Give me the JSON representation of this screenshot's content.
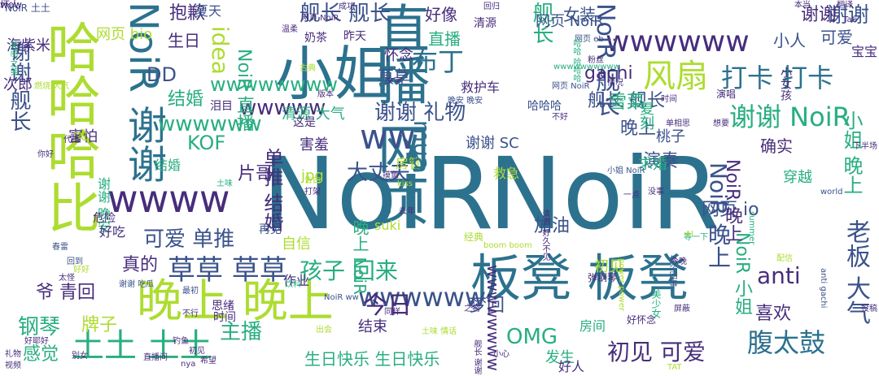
{
  "palette": {
    "background": "#ffffff",
    "purple": "#472d7b",
    "teal": "#2c728e",
    "green": "#28ae80",
    "lime": "#addc30",
    "blue": "#3b528b"
  },
  "words": [
    {
      "text": "NoiR",
      "color": "#2c728e",
      "orient": "h"
    },
    {
      "text": "NoiR",
      "color": "#2c728e",
      "orient": "h"
    },
    {
      "text": "板凳 板凳",
      "color": "#2c728e",
      "orient": "h"
    },
    {
      "text": "直播 网页",
      "color": "#2c728e",
      "orient": "v"
    },
    {
      "text": "小姐",
      "color": "#2c728e",
      "orient": "h"
    },
    {
      "text": "晚上 晚上",
      "color": "#addc30",
      "orient": "h"
    },
    {
      "text": "哈哈哈比",
      "color": "#addc30",
      "orient": "v"
    },
    {
      "text": "wwww",
      "color": "#472d7b",
      "orient": "h"
    },
    {
      "text": "NoiR 谢谢",
      "color": "#2c728e",
      "orient": "v"
    },
    {
      "text": "wwwwww",
      "color": "#3b528b",
      "orient": "h"
    },
    {
      "text": "wwwwww",
      "color": "#472d7b",
      "orient": "h"
    },
    {
      "text": "土土 土土",
      "color": "#28ae80",
      "orient": "h"
    },
    {
      "text": "草草 草草",
      "color": "#3b528b",
      "orient": "h"
    },
    {
      "text": "舰长 舰长",
      "color": "#3b528b",
      "orient": "h"
    },
    {
      "text": "腹太鼓",
      "color": "#2c728e",
      "orient": "h"
    },
    {
      "text": "谢谢 NoiR",
      "color": "#28ae80",
      "orient": "h"
    },
    {
      "text": "风扇",
      "color": "#addc30",
      "orient": "h"
    },
    {
      "text": "打卡 打卡",
      "color": "#2c728e",
      "orient": "h"
    },
    {
      "text": "ww",
      "color": "#3b528b",
      "orient": "h"
    },
    {
      "text": "wwwww",
      "color": "#472d7b",
      "orient": "h"
    },
    {
      "text": "wwwwww",
      "color": "#28ae80",
      "orient": "h"
    },
    {
      "text": "初见 可爱",
      "color": "#472d7b",
      "orient": "h"
    },
    {
      "text": "主播",
      "color": "#28ae80",
      "orient": "h"
    },
    {
      "text": "今日",
      "color": "#472d7b",
      "orient": "h"
    },
    {
      "text": "布丁",
      "color": "#2c728e",
      "orient": "h"
    },
    {
      "text": "可爱 单推",
      "color": "#3b528b",
      "orient": "h"
    },
    {
      "text": "孩子 回来",
      "color": "#28ae80",
      "orient": "h"
    },
    {
      "text": "结婚",
      "color": "#28ae80",
      "orient": "h"
    },
    {
      "text": "anti",
      "color": "#472d7b",
      "orient": "h"
    },
    {
      "text": "OMG",
      "color": "#28ae80",
      "orient": "h"
    },
    {
      "text": "生日快乐 生日快乐",
      "color": "#28ae80",
      "orient": "h"
    },
    {
      "text": "老板 大气",
      "color": "#3b528b",
      "orient": "v"
    },
    {
      "text": "NoiR 舰长",
      "color": "#3b528b",
      "orient": "v"
    },
    {
      "text": "NoiR 晚上",
      "color": "#3b528b",
      "orient": "v"
    },
    {
      "text": "谢谢 舰长",
      "color": "#3b528b",
      "orient": "v"
    },
    {
      "text": "idea",
      "color": "#addc30",
      "orient": "v"
    },
    {
      "text": "谢谢",
      "color": "#3b528b",
      "orient": "h"
    },
    {
      "text": "谢谢 礼物",
      "color": "#3b528b",
      "orient": "h"
    },
    {
      "text": "大丈夫",
      "color": "#3b528b",
      "orient": "h"
    },
    {
      "text": "抱歉",
      "color": "#472d7b",
      "orient": "h"
    },
    {
      "text": "生日",
      "color": "#472d7b",
      "orient": "h"
    },
    {
      "text": "DD",
      "color": "#3b528b",
      "orient": "h"
    },
    {
      "text": "KOF",
      "color": "#28ae80",
      "orient": "h"
    },
    {
      "text": "片哥",
      "color": "#472d7b",
      "orient": "h"
    },
    {
      "text": "真的",
      "color": "#472d7b",
      "orient": "h"
    },
    {
      "text": "钢琴",
      "color": "#28ae80",
      "orient": "h"
    },
    {
      "text": "牌子",
      "color": "#addc30",
      "orient": "h"
    },
    {
      "text": "感觉",
      "color": "#28ae80",
      "orient": "h"
    },
    {
      "text": "爷 青回",
      "color": "#472d7b",
      "orient": "h"
    },
    {
      "text": "喜欢",
      "color": "#472d7b",
      "orient": "h"
    },
    {
      "text": "演奏",
      "color": "#3b528b",
      "orient": "h"
    },
    {
      "text": "晚上",
      "color": "#3b528b",
      "orient": "h"
    },
    {
      "text": "gachi",
      "color": "#472d7b",
      "orient": "h"
    },
    {
      "text": "直播",
      "color": "#28ae80",
      "orient": "h"
    },
    {
      "text": "好像",
      "color": "#472d7b",
      "orient": "h"
    },
    {
      "text": "女装",
      "color": "#3b528b",
      "orient": "h"
    },
    {
      "text": "小人",
      "color": "#3b528b",
      "orient": "h"
    },
    {
      "text": "可爱",
      "color": "#3b528b",
      "orient": "h"
    },
    {
      "text": "谢谢",
      "color": "#472d7b",
      "orient": "h"
    },
    {
      "text": "舰长",
      "color": "#28ae80",
      "orient": "v"
    },
    {
      "text": "舰长 舰长",
      "color": "#3b528b",
      "orient": "h"
    },
    {
      "text": "雪菜",
      "color": "#28ae80",
      "orient": "h"
    },
    {
      "text": "复刻",
      "color": "#28ae80",
      "orient": "v"
    },
    {
      "text": "桃子",
      "color": "#3b528b",
      "orient": "h"
    },
    {
      "text": "确实",
      "color": "#472d7b",
      "orient": "h"
    },
    {
      "text": "谢谢 SC",
      "color": "#3b528b",
      "orient": "h"
    },
    {
      "text": "网页 io",
      "color": "#3b528b",
      "orient": "h"
    },
    {
      "text": "加油",
      "color": "#3b528b",
      "orient": "h"
    },
    {
      "text": "初见",
      "color": "#addc30",
      "orient": "h"
    },
    {
      "text": "结束",
      "color": "#472d7b",
      "orient": "h"
    },
    {
      "text": "发生",
      "color": "#28ae80",
      "orient": "h"
    },
    {
      "text": "房间",
      "color": "#28ae80",
      "orient": "h"
    },
    {
      "text": "好人",
      "color": "#472d7b",
      "orient": "h"
    },
    {
      "text": "海紫米",
      "color": "#472d7b",
      "orient": "h"
    },
    {
      "text": "次郎",
      "color": "#472d7b",
      "orient": "h"
    },
    {
      "text": "夏天",
      "color": "#3b528b",
      "orient": "h"
    },
    {
      "text": "怀念",
      "color": "#472d7b",
      "orient": "h"
    },
    {
      "text": "草草",
      "color": "#3b528b",
      "orient": "h"
    },
    {
      "text": "救护车",
      "color": "#472d7b",
      "orient": "h"
    },
    {
      "text": "害羞",
      "color": "#472d7b",
      "orient": "h"
    },
    {
      "text": "房管",
      "color": "#addc30",
      "orient": "h"
    },
    {
      "text": "求婚",
      "color": "#28ae80",
      "orient": "h"
    },
    {
      "text": "穿越",
      "color": "#28ae80",
      "orient": "h"
    },
    {
      "text": "自信",
      "color": "#addc30",
      "orient": "h"
    },
    {
      "text": "梦回",
      "color": "#3b528b",
      "orient": "h"
    },
    {
      "text": "mua",
      "color": "#2c728e",
      "orient": "v"
    },
    {
      "text": "单推 结婚",
      "color": "#472d7b",
      "orient": "v"
    },
    {
      "text": "NoiR 直播",
      "color": "#28ae80",
      "orient": "v"
    },
    {
      "text": "小姐 晚上",
      "color": "#28ae80",
      "orient": "v"
    },
    {
      "text": "NoiR 小姐",
      "color": "#28ae80",
      "orient": "v"
    },
    {
      "text": "NoiR 晚上",
      "color": "#472d7b",
      "orient": "v"
    },
    {
      "text": "晚上 NoiR",
      "color": "#28ae80",
      "orient": "v"
    },
    {
      "text": "wwwwwwww",
      "color": "#472d7b",
      "orient": "v"
    },
    {
      "text": "wwwwwwww",
      "color": "#28ae80",
      "orient": "h"
    },
    {
      "text": "jpg",
      "color": "#addc30",
      "orient": "h"
    },
    {
      "text": "结婚",
      "color": "#28ae80",
      "orient": "h"
    },
    {
      "text": "害怕",
      "color": "#472d7b",
      "orient": "h"
    },
    {
      "text": "谢谢 晚安",
      "color": "#28ae80",
      "orient": "v"
    },
    {
      "text": "清源 大气",
      "color": "#28ae80",
      "orient": "h"
    },
    {
      "text": "SC",
      "color": "#addc30",
      "orient": "h"
    },
    {
      "text": "好吃",
      "color": "#472d7b",
      "orient": "h"
    },
    {
      "text": "危险",
      "color": "#472d7b",
      "orient": "h"
    },
    {
      "text": "泪目",
      "color": "#472d7b",
      "orient": "h"
    },
    {
      "text": "这是",
      "color": "#472d7b",
      "orient": "h"
    },
    {
      "text": "思绪",
      "color": "#472d7b",
      "orient": "h"
    },
    {
      "text": "时间",
      "color": "#472d7b",
      "orient": "h"
    },
    {
      "text": "作业",
      "color": "#472d7b",
      "orient": "h"
    },
    {
      "text": "再见",
      "color": "#3b528b",
      "orient": "h"
    },
    {
      "text": "suki",
      "color": "#addc30",
      "orient": "h"
    },
    {
      "text": "救急",
      "color": "#addc30",
      "orient": "h"
    },
    {
      "text": "清源",
      "color": "#472d7b",
      "orient": "h"
    },
    {
      "text": "宝宝",
      "color": "#472d7b",
      "orient": "h"
    },
    {
      "text": "小女孩",
      "color": "#472d7b",
      "orient": "v"
    },
    {
      "text": "哈哈哈",
      "color": "#3b528b",
      "orient": "h"
    },
    {
      "text": "网页 NoiR",
      "color": "#3b528b",
      "orient": "h"
    },
    {
      "text": "奶茶",
      "color": "#472d7b",
      "orient": "h"
    },
    {
      "text": "昨天",
      "color": "#472d7b",
      "orient": "h"
    },
    {
      "text": "网页 bio",
      "color": "#addc30",
      "orient": "h"
    },
    {
      "text": "美丽 之美",
      "color": "#28ae80",
      "orient": "v"
    },
    {
      "text": "燃烧 大气",
      "color": "#addc30",
      "orient": "h"
    },
    {
      "text": "你好",
      "color": "#472d7b",
      "orient": "h"
    },
    {
      "text": "代播",
      "color": "#472d7b",
      "orient": "h"
    },
    {
      "text": "土味",
      "color": "#28ae80",
      "orient": "h"
    },
    {
      "text": "好好",
      "color": "#addc30",
      "orient": "h"
    },
    {
      "text": "春雷",
      "color": "#3b528b",
      "orient": "h"
    },
    {
      "text": "回到",
      "color": "#3b528b",
      "orient": "h"
    },
    {
      "text": "太怪",
      "color": "#472d7b",
      "orient": "h"
    },
    {
      "text": "谢谢 吃瓜",
      "color": "#3b528b",
      "orient": "h"
    },
    {
      "text": "最初",
      "color": "#3b528b",
      "orient": "h"
    },
    {
      "text": "不行",
      "color": "#472d7b",
      "orient": "h"
    },
    {
      "text": "钓鱼",
      "color": "#472d7b",
      "orient": "h"
    },
    {
      "text": "别女",
      "color": "#472d7b",
      "orient": "h"
    },
    {
      "text": "初见",
      "color": "#472d7b",
      "orient": "h"
    },
    {
      "text": "希望",
      "color": "#472d7b",
      "orient": "h"
    },
    {
      "text": "直播间",
      "color": "#472d7b",
      "orient": "h"
    },
    {
      "text": "nya",
      "color": "#472d7b",
      "orient": "h"
    },
    {
      "text": "出会",
      "color": "#addc30",
      "orient": "h"
    },
    {
      "text": "土味 情话",
      "color": "#addc30",
      "orient": "h"
    },
    {
      "text": "NoiR ww",
      "color": "#3b528b",
      "orient": "h"
    },
    {
      "text": "饮料",
      "color": "#28ae80",
      "orient": "h"
    },
    {
      "text": "同样",
      "color": "#472d7b",
      "orient": "h"
    },
    {
      "text": "告白",
      "color": "#addc30",
      "orient": "h"
    },
    {
      "text": "打架",
      "color": "#472d7b",
      "orient": "h"
    },
    {
      "text": "摸鱼",
      "color": "#472d7b",
      "orient": "h"
    },
    {
      "text": "去年",
      "color": "#472d7b",
      "orient": "h"
    },
    {
      "text": "kiss",
      "color": "#addc30",
      "orient": "h"
    },
    {
      "text": "经典",
      "color": "#addc30",
      "orient": "h"
    },
    {
      "text": "清源 好久不见",
      "color": "#472d7b",
      "orient": "v"
    },
    {
      "text": "boom boom",
      "color": "#addc30",
      "orient": "h"
    },
    {
      "text": "弹钢琴",
      "color": "#472d7b",
      "orient": "h"
    },
    {
      "text": "summer",
      "color": "#28ae80",
      "orient": "v"
    },
    {
      "text": "power power",
      "color": "#addc30",
      "orient": "v"
    },
    {
      "text": "美少女",
      "color": "#28ae80",
      "orient": "v"
    },
    {
      "text": "等一下",
      "color": "#28ae80",
      "orient": "h"
    },
    {
      "text": "好怀念",
      "color": "#472d7b",
      "orient": "h"
    },
    {
      "text": "怎么回事",
      "color": "#3b528b",
      "orient": "v"
    },
    {
      "text": "小姐 NoiR",
      "color": "#3b528b",
      "orient": "h"
    },
    {
      "text": "没事",
      "color": "#472d7b",
      "orient": "h"
    },
    {
      "text": "一点",
      "color": "#472d7b",
      "orient": "h"
    },
    {
      "text": "AI",
      "color": "#addc30",
      "orient": "h"
    },
    {
      "text": "world",
      "color": "#3b528b",
      "orient": "h"
    },
    {
      "text": "今晚",
      "color": "#472d7b",
      "orient": "h"
    },
    {
      "text": "配信",
      "color": "#addc30",
      "orient": "h"
    },
    {
      "text": "屏蔽",
      "color": "#472d7b",
      "orient": "h"
    },
    {
      "text": "投稿",
      "color": "#472d7b",
      "orient": "h"
    },
    {
      "text": "anti gachi",
      "color": "#3b528b",
      "orient": "v"
    },
    {
      "text": "回归",
      "color": "#472d7b",
      "orient": "h"
    },
    {
      "text": "网页 NoiR",
      "color": "#472d7b",
      "orient": "h"
    },
    {
      "text": "温柔",
      "color": "#472d7b",
      "orient": "h"
    },
    {
      "text": "古典",
      "color": "#addc30",
      "orient": "h"
    },
    {
      "text": "文字",
      "color": "#472d7b",
      "orient": "h"
    },
    {
      "text": "版本",
      "color": "#472d7b",
      "orient": "h"
    },
    {
      "text": "晚安 晚安",
      "color": "#3b528b",
      "orient": "h"
    },
    {
      "text": "不好",
      "color": "#472d7b",
      "orient": "h"
    },
    {
      "text": "网页 eb",
      "color": "#3b528b",
      "orient": "h"
    },
    {
      "text": "粉丝",
      "color": "#472d7b",
      "orient": "h"
    },
    {
      "text": "情况",
      "color": "#472d7b",
      "orient": "h"
    },
    {
      "text": "时间",
      "color": "#472d7b",
      "orient": "h"
    },
    {
      "text": "单相思",
      "color": "#472d7b",
      "orient": "h"
    },
    {
      "text": "想要",
      "color": "#472d7b",
      "orient": "h"
    },
    {
      "text": "本当",
      "color": "#472d7b",
      "orient": "h"
    },
    {
      "text": "翻译",
      "color": "#472d7b",
      "orient": "h"
    },
    {
      "text": "Tati",
      "color": "#472d7b",
      "orient": "h"
    },
    {
      "text": "NoiR 土土",
      "color": "#3b528b",
      "orient": "h"
    },
    {
      "text": "成功",
      "color": "#472d7b",
      "orient": "h"
    },
    {
      "text": "网页 NoiR",
      "color": "#3b528b",
      "orient": "h"
    },
    {
      "text": "礼物",
      "color": "#472d7b",
      "orient": "h"
    },
    {
      "text": "视频",
      "color": "#472d7b",
      "orient": "h"
    },
    {
      "text": "好耶好",
      "color": "#472d7b",
      "orient": "h"
    },
    {
      "text": "下半场",
      "color": "#472d7b",
      "orient": "h"
    },
    {
      "text": "演唱",
      "color": "#472d7b",
      "orient": "h"
    },
    {
      "text": "哈哈 哈哈哈",
      "color": "#28ae80",
      "orient": "v"
    },
    {
      "text": "wwwwwwwwww",
      "color": "#28ae80",
      "orient": "h"
    },
    {
      "text": "小心",
      "color": "#472d7b",
      "orient": "h"
    },
    {
      "text": "舰长 谢谢",
      "color": "#472d7b",
      "orient": "v"
    },
    {
      "text": "TAT",
      "color": "#addc30",
      "orient": "h"
    },
    {
      "text": "之物",
      "color": "#472d7b",
      "orient": "h"
    },
    {
      "text": "坏人",
      "color": "#472d7b",
      "orient": "h"
    },
    {
      "text": "wow",
      "color": "#472d7b",
      "orient": "h"
    }
  ]
}
